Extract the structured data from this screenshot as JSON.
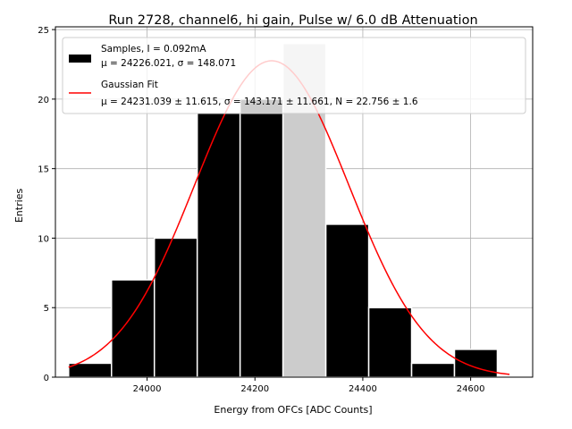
{
  "chart_data": {
    "type": "bar",
    "title": "Run 2728, channel6, hi gain, Pulse w/ 6.0 dB Attenuation",
    "xlabel": "Energy from OFCs [ADC Counts]",
    "ylabel": "Entries",
    "xlim": [
      23830,
      24715
    ],
    "ylim": [
      0,
      25.2
    ],
    "xticks": [
      24000,
      24200,
      24400,
      24600
    ],
    "yticks": [
      0,
      5,
      10,
      15,
      20,
      25
    ],
    "grid": true,
    "legend_position": "top-left",
    "histogram": {
      "name": "Samples, I = 0.092mA",
      "stats": "μ = 24226.021, σ = 148.071",
      "bin_edges": [
        23854.5,
        23934,
        24013.5,
        24093,
        24172.5,
        24252,
        24331.5,
        24411,
        24490.5,
        24570,
        24649.5
      ],
      "counts": [
        1,
        7,
        10,
        19,
        20,
        24,
        11,
        5,
        1,
        2
      ],
      "overflow_bin_index": 5,
      "color": "#000000",
      "overflow_color": "#cccccc"
    },
    "fit": {
      "name": "Gaussian Fit",
      "stats": "μ = 24231.039 ± 11.615, σ = 143.171 ± 11.661, N = 22.756 ± 1.6",
      "mu": 24231.039,
      "sigma": 143.171,
      "amplitude": 22.756,
      "x_range": [
        23854.5,
        24672
      ],
      "color": "#ff0000"
    }
  }
}
